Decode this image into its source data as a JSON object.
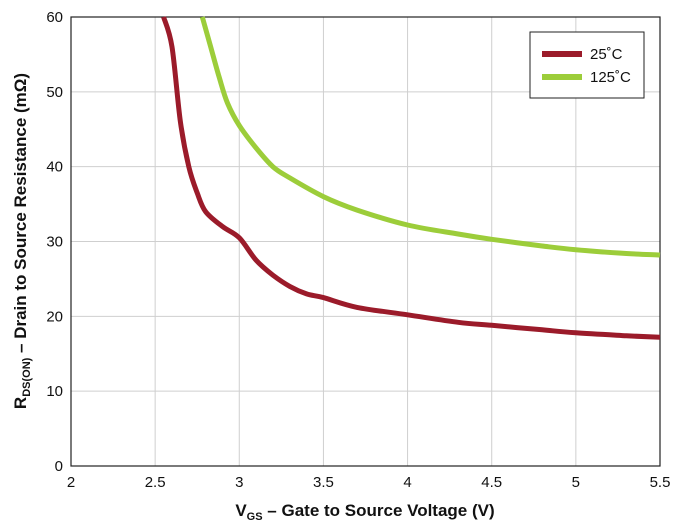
{
  "chart_data": {
    "type": "line",
    "xlim": [
      2,
      5.5
    ],
    "ylim": [
      0,
      60
    ],
    "x_ticks": [
      "2",
      "2.5",
      "3",
      "3.5",
      "4",
      "4.5",
      "5",
      "5.5"
    ],
    "y_ticks": [
      "0",
      "10",
      "20",
      "30",
      "40",
      "50",
      "60"
    ],
    "grid": true,
    "legend_position": "top-right",
    "xlabel": {
      "main": "V",
      "sub": "GS",
      "rest": " – Gate to Source Voltage (V)"
    },
    "ylabel": {
      "main": "R",
      "sub": "DS(ON)",
      "rest": " – Drain to Source Resistance (mΩ)"
    },
    "series": [
      {
        "name": "25˚C",
        "color": "#9b1b2a",
        "x": [
          2.55,
          2.6,
          2.65,
          2.7,
          2.75,
          2.8,
          2.9,
          3.0,
          3.1,
          3.2,
          3.3,
          3.4,
          3.5,
          3.7,
          4.0,
          4.3,
          4.5,
          4.8,
          5.0,
          5.3,
          5.5
        ],
        "y": [
          60,
          56,
          46,
          40,
          36.5,
          34,
          32,
          30.5,
          27.5,
          25.5,
          24,
          23,
          22.5,
          21.2,
          20.2,
          19.2,
          18.8,
          18.2,
          17.8,
          17.4,
          17.2
        ]
      },
      {
        "name": "125˚C",
        "color": "#9ccd3a",
        "x": [
          2.78,
          2.83,
          2.88,
          2.93,
          3.0,
          3.1,
          3.2,
          3.3,
          3.5,
          3.7,
          4.0,
          4.3,
          4.5,
          4.8,
          5.0,
          5.3,
          5.5
        ],
        "y": [
          60,
          56,
          52,
          48.5,
          45.5,
          42.5,
          40,
          38.5,
          36,
          34.2,
          32.2,
          31,
          30.3,
          29.4,
          28.9,
          28.4,
          28.2
        ]
      }
    ]
  }
}
